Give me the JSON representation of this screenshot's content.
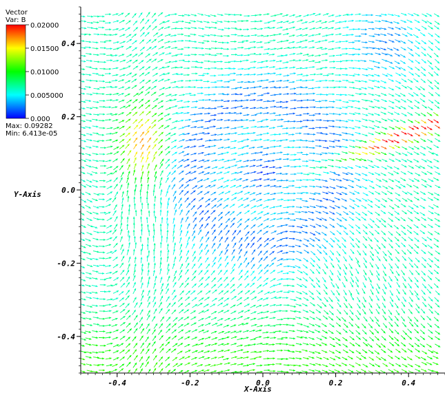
{
  "legend": {
    "title": "Vector",
    "var_label": "Var: B",
    "max_text": "Max: 0.09282",
    "min_text": "Min: 6.413e-05",
    "ticks": [
      {
        "value": 0.02,
        "label": "0.02000"
      },
      {
        "value": 0.015,
        "label": "0.01500"
      },
      {
        "value": 0.01,
        "label": "0.01000"
      },
      {
        "value": 0.005,
        "label": "0.005000"
      },
      {
        "value": 0.0,
        "label": "0.000"
      }
    ],
    "colormap": [
      "#ff0000",
      "#ffff00",
      "#00ff00",
      "#00ffff",
      "#0000ff"
    ]
  },
  "chart_data": {
    "type": "vector-field",
    "xlabel": "X-Axis",
    "ylabel": "Y-Axis",
    "xlim": [
      -0.5,
      0.5
    ],
    "ylim": [
      -0.5,
      0.5
    ],
    "xticks": [
      {
        "value": -0.4,
        "label": "-0.4"
      },
      {
        "value": -0.2,
        "label": "-0.2"
      },
      {
        "value": 0.0,
        "label": "0.0"
      },
      {
        "value": 0.2,
        "label": "0.2"
      },
      {
        "value": 0.4,
        "label": "0.4"
      }
    ],
    "yticks": [
      {
        "value": 0.4,
        "label": "0.4"
      },
      {
        "value": 0.2,
        "label": "0.2"
      },
      {
        "value": 0.0,
        "label": "0.0"
      },
      {
        "value": -0.2,
        "label": "-0.2"
      },
      {
        "value": -0.4,
        "label": "-0.4"
      }
    ],
    "color_range": [
      0.0,
      0.02
    ],
    "magnitude_max": 0.09282,
    "magnitude_min": 6.413e-05,
    "colormap": "rainbow (blue-cyan-green-yellow-red)"
  }
}
